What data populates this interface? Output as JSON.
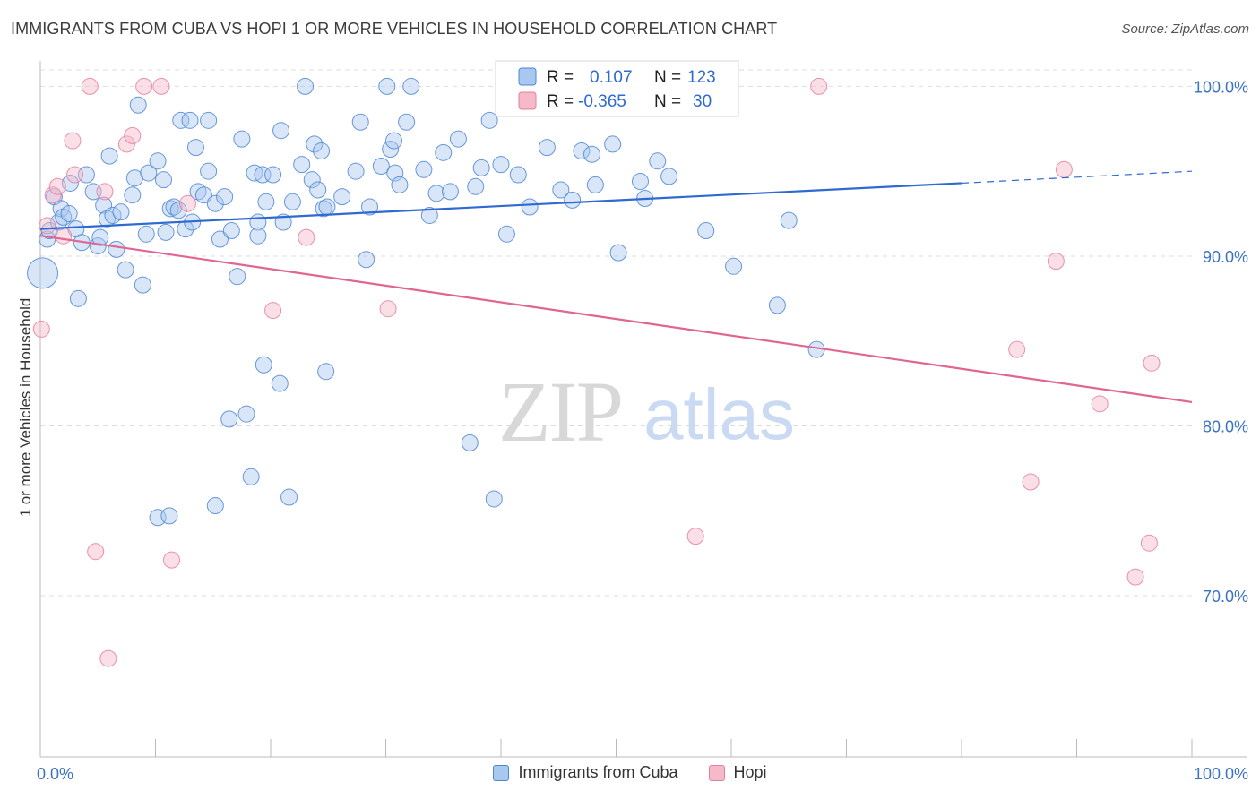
{
  "header": {
    "title": "IMMIGRANTS FROM CUBA VS HOPI 1 OR MORE VEHICLES IN HOUSEHOLD CORRELATION CHART",
    "source": "Source: ZipAtlas.com"
  },
  "watermark": {
    "zip": "ZIP",
    "atlas": "atlas"
  },
  "legend": {
    "r_label": "R =",
    "n_label": "N =",
    "items": [
      {
        "r": "0.107",
        "n": "123"
      },
      {
        "r": "-0.365",
        "n": "30"
      }
    ]
  },
  "colors": {
    "series0_fill": "#a9c8f0",
    "series0_stroke": "#4f86d4",
    "series0_line": "#2e6ad1",
    "series1_fill": "#f5b9ca",
    "series1_stroke": "#e57fa0",
    "series1_line": "#e06592",
    "grid": "#dddddd",
    "tick_label": "#3a72c4"
  },
  "chart_data": {
    "type": "scatter",
    "title": "IMMIGRANTS FROM CUBA VS HOPI 1 OR MORE VEHICLES IN HOUSEHOLD CORRELATION CHART",
    "xlabel": "",
    "ylabel": "1 or more Vehicles in Household",
    "xlim": [
      0,
      100
    ],
    "ylim": [
      60.5,
      101.5
    ],
    "x_tick_labels": [
      "0.0%",
      "100.0%"
    ],
    "y_ticks": [
      {
        "value": 70,
        "label": "70.0%"
      },
      {
        "value": 80,
        "label": "80.0%"
      },
      {
        "value": 90,
        "label": "90.0%"
      },
      {
        "value": 100,
        "label": "100.0%"
      }
    ],
    "grid": "horizontal dashed",
    "legend_position": "top-center",
    "series": [
      {
        "name": "Immigrants from Cuba",
        "r": 0.107,
        "n": 123,
        "trend": {
          "x0": 0,
          "y0": 91.6,
          "x1": 80,
          "y1": 94.3,
          "dashed_to_x": 100,
          "dashed_to_y": 95.0
        },
        "points": [
          [
            0.2,
            89.0,
            "big"
          ],
          [
            0.6,
            91.0
          ],
          [
            0.8,
            91.5
          ],
          [
            1.2,
            93.5
          ],
          [
            1.6,
            92.0
          ],
          [
            1.8,
            92.8
          ],
          [
            2.0,
            92.3
          ],
          [
            2.5,
            92.5
          ],
          [
            2.6,
            94.3
          ],
          [
            3.1,
            91.6
          ],
          [
            3.3,
            87.5
          ],
          [
            3.6,
            90.8
          ],
          [
            4.0,
            94.8
          ],
          [
            4.6,
            93.8
          ],
          [
            5.0,
            90.6
          ],
          [
            5.2,
            91.1
          ],
          [
            5.5,
            93.0
          ],
          [
            5.8,
            92.2
          ],
          [
            6.0,
            95.9
          ],
          [
            6.3,
            92.4
          ],
          [
            6.6,
            90.4
          ],
          [
            7.0,
            92.6
          ],
          [
            7.4,
            89.2
          ],
          [
            8.0,
            93.6
          ],
          [
            8.2,
            94.6
          ],
          [
            8.5,
            98.9
          ],
          [
            8.9,
            88.3
          ],
          [
            9.2,
            91.3
          ],
          [
            9.4,
            94.9
          ],
          [
            10.2,
            95.6
          ],
          [
            10.7,
            94.5
          ],
          [
            10.9,
            91.4
          ],
          [
            11.3,
            92.8
          ],
          [
            11.6,
            92.9
          ],
          [
            12.0,
            92.7
          ],
          [
            12.2,
            98.0
          ],
          [
            12.6,
            91.6
          ],
          [
            13.0,
            98.0
          ],
          [
            13.2,
            92.0
          ],
          [
            13.5,
            96.4
          ],
          [
            13.7,
            93.8
          ],
          [
            14.2,
            93.6
          ],
          [
            14.6,
            98.0
          ],
          [
            14.6,
            95.0
          ],
          [
            15.2,
            93.1
          ],
          [
            15.6,
            91.0
          ],
          [
            16.0,
            93.5
          ],
          [
            16.6,
            91.5
          ],
          [
            17.1,
            88.8
          ],
          [
            17.5,
            96.9
          ],
          [
            18.6,
            94.9
          ],
          [
            18.9,
            92.0
          ],
          [
            18.9,
            91.2
          ],
          [
            19.3,
            94.8
          ],
          [
            19.6,
            93.2
          ],
          [
            20.2,
            94.8
          ],
          [
            20.9,
            97.4
          ],
          [
            21.1,
            92.0
          ],
          [
            21.9,
            93.2
          ],
          [
            22.7,
            95.4
          ],
          [
            23.0,
            100.0
          ],
          [
            23.6,
            94.5
          ],
          [
            23.8,
            96.6
          ],
          [
            24.1,
            93.9
          ],
          [
            24.4,
            96.2
          ],
          [
            24.6,
            92.8
          ],
          [
            24.9,
            92.9
          ],
          [
            26.2,
            93.5
          ],
          [
            27.4,
            95.0
          ],
          [
            27.8,
            97.9
          ],
          [
            28.3,
            89.8
          ],
          [
            28.6,
            92.9
          ],
          [
            29.6,
            95.3
          ],
          [
            30.1,
            100.0
          ],
          [
            30.4,
            96.3
          ],
          [
            30.7,
            96.8
          ],
          [
            30.8,
            94.9
          ],
          [
            31.2,
            94.2
          ],
          [
            31.8,
            97.9
          ],
          [
            32.2,
            100.0
          ],
          [
            33.3,
            95.1
          ],
          [
            33.8,
            92.4
          ],
          [
            34.4,
            93.7
          ],
          [
            35.0,
            96.1
          ],
          [
            35.6,
            93.8
          ],
          [
            36.3,
            96.9
          ],
          [
            37.8,
            94.1
          ],
          [
            38.3,
            95.2
          ],
          [
            39.0,
            98.0
          ],
          [
            40.0,
            95.4
          ],
          [
            40.5,
            91.3
          ],
          [
            41.5,
            94.8
          ],
          [
            42.5,
            92.9
          ],
          [
            44.0,
            96.4
          ],
          [
            45.2,
            93.9
          ],
          [
            46.2,
            93.3
          ],
          [
            47.0,
            96.2
          ],
          [
            47.9,
            96.0
          ],
          [
            48.2,
            94.2
          ],
          [
            49.7,
            96.6
          ],
          [
            50.2,
            90.2
          ],
          [
            52.1,
            94.4
          ],
          [
            52.5,
            93.4
          ],
          [
            53.6,
            95.6
          ],
          [
            54.6,
            94.7
          ],
          [
            57.8,
            91.5
          ],
          [
            60.2,
            89.4
          ],
          [
            64.0,
            87.1
          ],
          [
            65.0,
            92.1
          ],
          [
            67.4,
            84.5
          ],
          [
            19.4,
            83.6
          ],
          [
            20.8,
            82.5
          ],
          [
            24.8,
            83.2
          ],
          [
            16.4,
            80.4
          ],
          [
            17.9,
            80.7
          ],
          [
            18.3,
            77.0
          ],
          [
            21.6,
            75.8
          ],
          [
            15.2,
            75.3
          ],
          [
            10.2,
            74.6
          ],
          [
            11.2,
            74.7
          ],
          [
            37.3,
            79.0
          ],
          [
            39.4,
            75.7
          ]
        ]
      },
      {
        "name": "Hopi",
        "r": -0.365,
        "n": 30,
        "trend": {
          "x0": 0,
          "y0": 91.2,
          "x1": 100,
          "y1": 81.4
        },
        "points": [
          [
            0.1,
            85.7
          ],
          [
            0.6,
            91.8
          ],
          [
            1.1,
            93.6
          ],
          [
            1.5,
            94.1
          ],
          [
            2.0,
            91.2
          ],
          [
            2.8,
            96.8
          ],
          [
            3.0,
            94.8
          ],
          [
            4.3,
            100.0
          ],
          [
            4.8,
            72.6
          ],
          [
            5.6,
            93.8
          ],
          [
            5.9,
            66.3
          ],
          [
            7.5,
            96.6
          ],
          [
            8.0,
            97.1
          ],
          [
            9.0,
            100.0
          ],
          [
            10.5,
            100.0
          ],
          [
            11.4,
            72.1
          ],
          [
            12.8,
            93.1
          ],
          [
            20.2,
            86.8
          ],
          [
            23.1,
            91.1
          ],
          [
            30.2,
            86.9
          ],
          [
            56.9,
            73.5
          ],
          [
            67.6,
            100.0
          ],
          [
            84.8,
            84.5
          ],
          [
            86.0,
            76.7
          ],
          [
            88.2,
            89.7
          ],
          [
            88.9,
            95.1
          ],
          [
            92.0,
            81.3
          ],
          [
            95.1,
            71.1
          ],
          [
            96.3,
            73.1
          ],
          [
            96.5,
            83.7
          ]
        ]
      }
    ]
  }
}
